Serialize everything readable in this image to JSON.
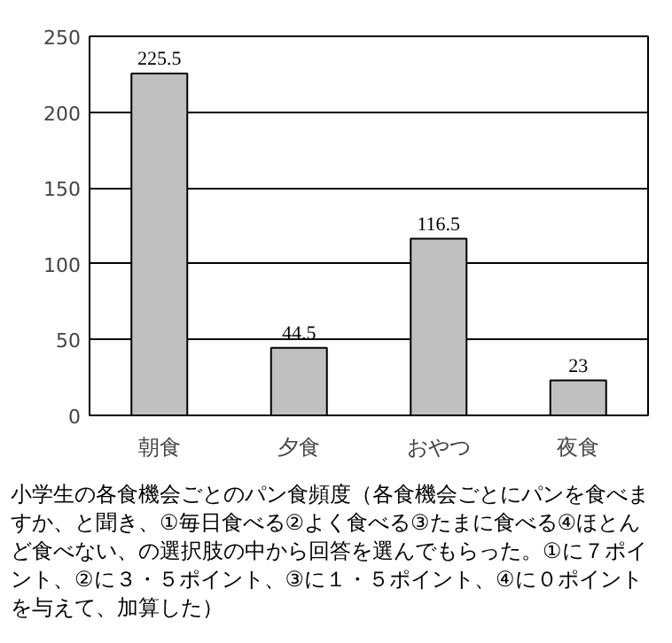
{
  "chart_data": {
    "type": "bar",
    "categories": [
      "朝食",
      "夕食",
      "おやつ",
      "夜食"
    ],
    "values": [
      225.5,
      44.5,
      116.5,
      23
    ],
    "color": "#c0c0c0",
    "ylim": [
      0,
      250
    ],
    "yticks": [
      0,
      50,
      100,
      150,
      200,
      250
    ],
    "grid": "y",
    "data_labels": true,
    "annotations": [
      "小学生の各食機会ごとのパン食頻度（各食機会ごとにパンを食べますか、と聞き、①毎日食べる②よく食べる③たまに食べる④ほとんど食べない、の選択肢の中から回答を選んでもらった。①に７ポイント、②に３・５ポイント、③に１・５ポイント、④に０ポイントを与えて、加算した）"
    ]
  }
}
